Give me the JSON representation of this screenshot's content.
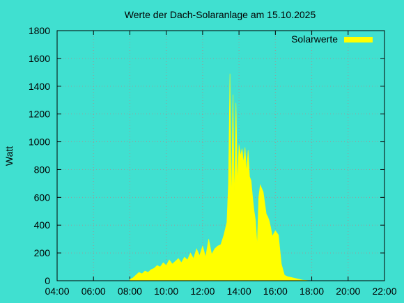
{
  "chart_data": {
    "type": "area",
    "title": "Werte der Dach-Solaranlage am 15.10.2025",
    "ylabel": "Watt",
    "xlabel": "",
    "xlim": [
      "04:00",
      "22:00"
    ],
    "ylim": [
      0,
      1800
    ],
    "x_ticks": [
      "04:00",
      "06:00",
      "08:00",
      "10:00",
      "12:00",
      "14:00",
      "16:00",
      "18:00",
      "20:00",
      "22:00"
    ],
    "y_ticks": [
      0,
      200,
      400,
      600,
      800,
      1000,
      1200,
      1400,
      1600,
      1800
    ],
    "grid": true,
    "legend_position": "top-right",
    "colors": {
      "background": "#40e0d0",
      "series": "#ffff00",
      "grid": "#9a9a9a"
    },
    "series": [
      {
        "name": "Solarwerte",
        "x": [
          "08:00",
          "08:10",
          "08:20",
          "08:30",
          "08:40",
          "08:50",
          "09:00",
          "09:10",
          "09:20",
          "09:30",
          "09:40",
          "09:50",
          "10:00",
          "10:10",
          "10:20",
          "10:30",
          "10:40",
          "10:50",
          "11:00",
          "11:10",
          "11:20",
          "11:30",
          "11:40",
          "11:50",
          "12:00",
          "12:10",
          "12:20",
          "12:30",
          "12:40",
          "12:50",
          "13:00",
          "13:10",
          "13:20",
          "13:25",
          "13:30",
          "13:35",
          "13:40",
          "13:45",
          "13:50",
          "13:55",
          "14:00",
          "14:05",
          "14:10",
          "14:15",
          "14:20",
          "14:25",
          "14:30",
          "14:35",
          "14:40",
          "14:45",
          "14:50",
          "14:55",
          "15:00",
          "15:05",
          "15:10",
          "15:20",
          "15:30",
          "15:35",
          "15:40",
          "15:45",
          "15:50",
          "16:00",
          "16:10",
          "16:20",
          "16:30",
          "16:40",
          "16:50",
          "17:00",
          "17:10",
          "17:20",
          "17:30",
          "17:40",
          "17:50",
          "18:00"
        ],
        "values": [
          10,
          20,
          40,
          60,
          50,
          70,
          60,
          80,
          90,
          110,
          100,
          130,
          110,
          150,
          120,
          140,
          160,
          130,
          170,
          150,
          200,
          160,
          230,
          180,
          250,
          170,
          300,
          190,
          230,
          250,
          260,
          330,
          420,
          700,
          1490,
          560,
          1340,
          600,
          1280,
          700,
          980,
          900,
          950,
          850,
          960,
          780,
          940,
          750,
          720,
          600,
          500,
          430,
          250,
          600,
          690,
          640,
          480,
          460,
          430,
          380,
          320,
          360,
          330,
          120,
          40,
          30,
          25,
          20,
          15,
          10,
          5,
          3,
          1,
          0
        ]
      }
    ]
  }
}
